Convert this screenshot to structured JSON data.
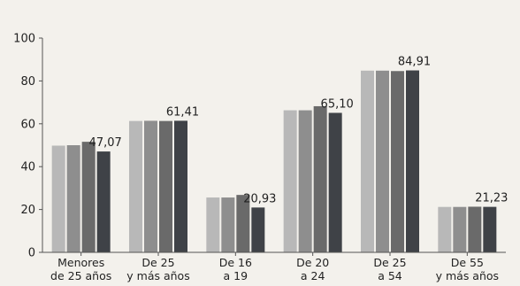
{
  "chart_data": {
    "type": "bar",
    "title": "",
    "xlabel": "",
    "ylabel": "",
    "ylim": [
      0,
      100
    ],
    "yticks": [
      0,
      20,
      40,
      60,
      80,
      100
    ],
    "grid": false,
    "legend": "none",
    "categories": [
      [
        "Menores",
        "de 25 años"
      ],
      [
        "De 25",
        "y más años"
      ],
      [
        "De 16",
        "a 19"
      ],
      [
        "De 20",
        "a 24"
      ],
      [
        "De 25",
        "a 54"
      ],
      [
        "De 55",
        "y más años"
      ]
    ],
    "series": [
      {
        "values": [
          49.8,
          61.3,
          25.6,
          66.3,
          84.8,
          21.2
        ]
      },
      {
        "values": [
          50.0,
          61.4,
          25.6,
          66.3,
          84.8,
          21.2
        ]
      },
      {
        "values": [
          51.6,
          61.3,
          26.8,
          68.2,
          84.6,
          21.3
        ]
      },
      {
        "values": [
          47.07,
          61.41,
          20.93,
          65.1,
          84.91,
          21.23
        ]
      }
    ],
    "data_labels": [
      "47,07",
      "61,41",
      "20,93",
      "65,10",
      "84,91",
      "21,23"
    ],
    "colors": [
      "#b8b8b8",
      "#8e8e8e",
      "#6a6a6a",
      "#3f4247"
    ]
  }
}
